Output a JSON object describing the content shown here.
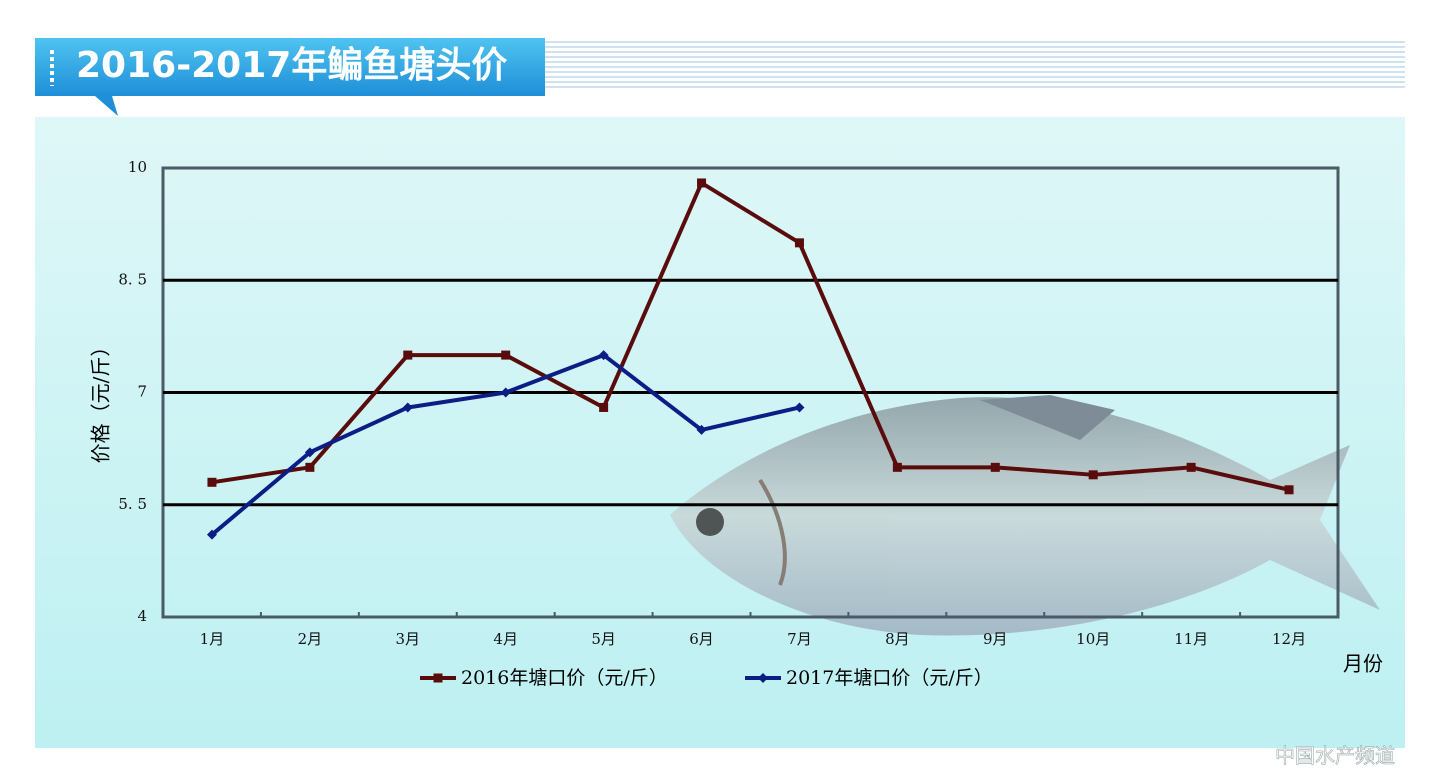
{
  "chart_data": {
    "type": "line",
    "title": "2016-2017年鳊鱼塘头价",
    "y_label": "价格（元/斤）",
    "x_label": "月份",
    "categories": [
      "1月",
      "2月",
      "3月",
      "4月",
      "5月",
      "6月",
      "7月",
      "8月",
      "9月",
      "10月",
      "11月",
      "12月"
    ],
    "series": [
      {
        "name": "2016年塘口价（元/斤）",
        "color": "#5a0c0c",
        "marker": "square",
        "values": [
          5.8,
          6.0,
          7.5,
          7.5,
          6.8,
          9.8,
          9.0,
          6.0,
          6.0,
          5.9,
          6.0,
          5.7
        ]
      },
      {
        "name": "2017年塘口价（元/斤）",
        "color": "#0c1e86",
        "marker": "diamond",
        "values": [
          5.1,
          6.2,
          6.8,
          7.0,
          7.5,
          6.5,
          6.8,
          null,
          null,
          null,
          null,
          null
        ]
      }
    ],
    "ylim": [
      4,
      10
    ],
    "yticks": [
      4,
      {
        "value": 5.5,
        "label": "5. 5"
      },
      7,
      {
        "value": 8.5,
        "label": "8. 5"
      },
      10
    ],
    "grid": true,
    "watermark": "中国水产频道"
  }
}
